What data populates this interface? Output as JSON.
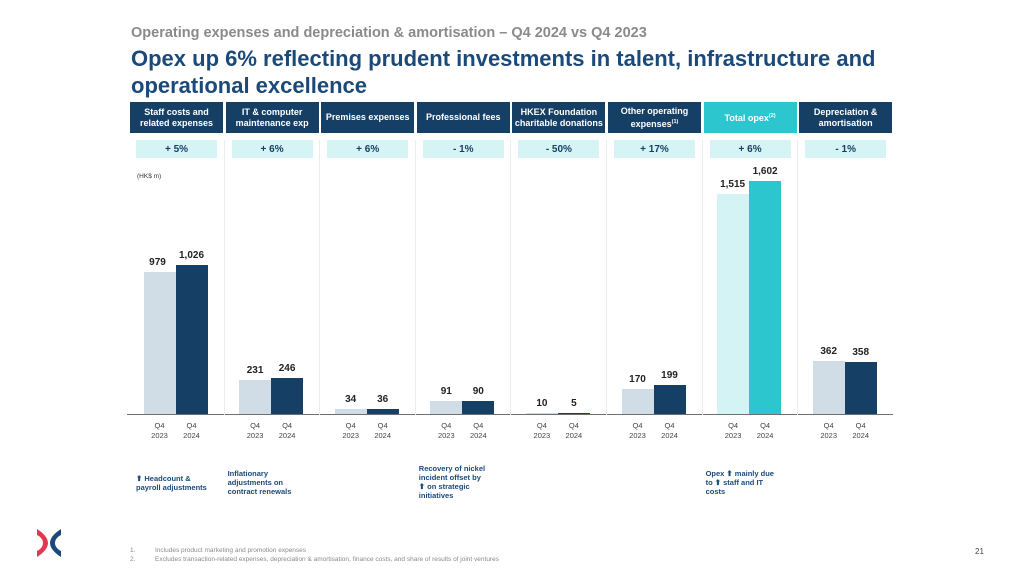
{
  "header": {
    "subtitle": "Operating expenses and depreciation & amortisation – Q4 2024 vs Q4 2023",
    "title": "Opex up 6% reflecting prudent investments in talent, infrastructure and operational excellence"
  },
  "colors": {
    "header_navy": "#163f66",
    "header_teal": "#2cc6cf",
    "pill_bg": "#d6f3f6",
    "bar_2023": "#d0dce6",
    "bar_2024": "#163f66",
    "bar_total_2023": "#d3f3f5",
    "bar_total_2024": "#2cc6cf",
    "logo_red": "#e0384f",
    "logo_blue": "#1b4a7a"
  },
  "chart_data": {
    "type": "bar",
    "title": "Operating expenses and depreciation & amortisation – Q4 2024 vs Q4 2023",
    "unit_label": "(HK$ m)",
    "xlabel": "",
    "ylabel": "HK$ m",
    "ylim": [
      0,
      1602
    ],
    "grid": false,
    "series_names": [
      "Q4 2023",
      "Q4 2024"
    ],
    "tick_labels": [
      [
        "Q4",
        "2023"
      ],
      [
        "Q4",
        "2024"
      ]
    ],
    "categories": [
      {
        "header": "Staff costs and related expenses",
        "header_lines": [
          "Staff costs and",
          "related expenses"
        ],
        "change": "+ 5%",
        "values": [
          979,
          1026
        ],
        "labels": [
          "979",
          "1,026"
        ],
        "note_lines": [
          "⬆ Headcount &",
          "payroll adjustments"
        ],
        "highlight": false
      },
      {
        "header": "IT & computer maintenance exp",
        "header_lines": [
          "IT & computer",
          "maintenance exp"
        ],
        "change": "+ 6%",
        "values": [
          231,
          246
        ],
        "labels": [
          "231",
          "246"
        ],
        "note_lines": [
          "Inflationary",
          "adjustments on",
          "contract renewals"
        ],
        "highlight": false
      },
      {
        "header": "Premises expenses",
        "header_lines": [
          "Premises expenses"
        ],
        "change": "+ 6%",
        "values": [
          34,
          36
        ],
        "labels": [
          "34",
          "36"
        ],
        "note_lines": [],
        "highlight": false
      },
      {
        "header": "Professional fees",
        "header_lines": [
          "Professional fees"
        ],
        "change": "- 1%",
        "values": [
          91,
          90
        ],
        "labels": [
          "91",
          "90"
        ],
        "note_lines": [
          "Recovery of nickel",
          "incident offset by",
          "⬆ on strategic",
          "initiatives"
        ],
        "highlight": false
      },
      {
        "header": "HKEX Foundation charitable donations",
        "header_lines": [
          "HKEX Foundation",
          "charitable donations"
        ],
        "change": "- 50%",
        "values": [
          10,
          5
        ],
        "labels": [
          "10",
          "5"
        ],
        "note_lines": [],
        "highlight": false
      },
      {
        "header": "Other operating expenses(1)",
        "header_lines": [
          "Other operating",
          "expenses"
        ],
        "header_sup": "(1)",
        "change": "+ 17%",
        "values": [
          170,
          199
        ],
        "labels": [
          "170",
          "199"
        ],
        "note_lines": [],
        "highlight": false
      },
      {
        "header": "Total opex(2)",
        "header_lines": [
          "Total opex"
        ],
        "header_sup": "(2)",
        "change": "+ 6%",
        "values": [
          1515,
          1602
        ],
        "labels": [
          "1,515",
          "1,602"
        ],
        "note_lines": [
          "Opex ⬆ mainly due",
          "to ⬆ staff and IT",
          "costs"
        ],
        "highlight": true
      },
      {
        "header": "Depreciation & amortisation",
        "header_lines": [
          "Depreciation &",
          "amortisation"
        ],
        "change": "- 1%",
        "values": [
          362,
          358
        ],
        "labels": [
          "362",
          "358"
        ],
        "note_lines": [],
        "highlight": false
      }
    ]
  },
  "footnotes": [
    {
      "num": "1.",
      "text": "Includes product marketing and promotion expenses"
    },
    {
      "num": "2.",
      "text": "Excludes transaction-related expenses, depreciation & amortisation, finance costs, and share of results of joint ventures"
    }
  ],
  "page_number": "21",
  "logo": {
    "icon": "hkex-logo-icon"
  }
}
